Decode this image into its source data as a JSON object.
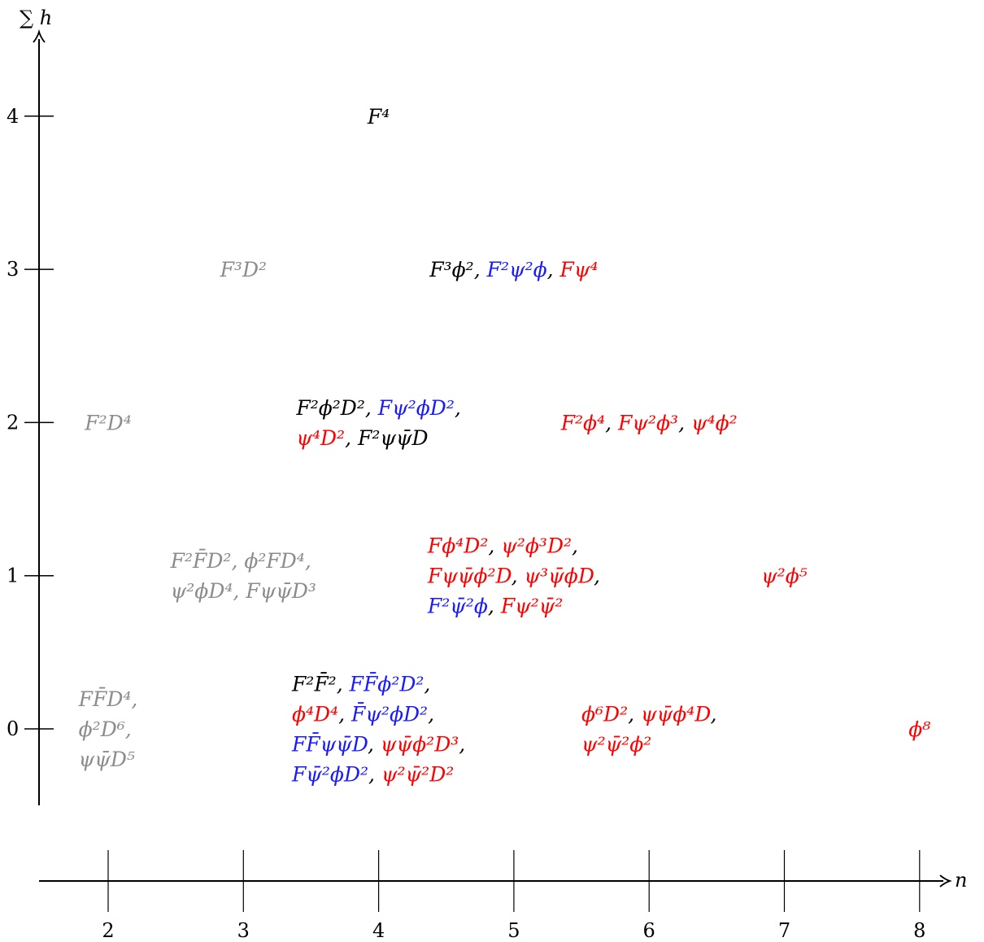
{
  "colors": {
    "black": "#000000",
    "blue": "#1a1aff",
    "red": "#ff0000",
    "gray": "#8c8c8c"
  },
  "axes": {
    "y_title": "∑ h",
    "x_title": "n",
    "y_ticks": [
      "0",
      "1",
      "2",
      "3",
      "4"
    ],
    "x_ticks": [
      "2",
      "3",
      "4",
      "5",
      "6",
      "7",
      "8"
    ]
  },
  "chart_data": {
    "type": "table",
    "x_axis": {
      "label": "n",
      "values": [
        2,
        3,
        4,
        5,
        6,
        7,
        8
      ]
    },
    "y_axis": {
      "label": "∑ h",
      "values": [
        0,
        1,
        2,
        3,
        4
      ]
    },
    "entries": [
      {
        "n": 4,
        "sum_h": 4,
        "lines": [
          [
            {
              "text": "F⁴",
              "color": "black"
            }
          ]
        ]
      },
      {
        "n": 3,
        "sum_h": 3,
        "lines": [
          [
            {
              "text": "F³D²",
              "color": "gray"
            }
          ]
        ]
      },
      {
        "n": 5,
        "sum_h": 3,
        "lines": [
          [
            {
              "text": "F³ϕ², ",
              "color": "black"
            },
            {
              "text": "F²ψ²ϕ",
              "color": "blue"
            },
            {
              "text": ", ",
              "color": "black"
            },
            {
              "text": "Fψ⁴",
              "color": "red"
            }
          ]
        ]
      },
      {
        "n": 2,
        "sum_h": 2,
        "lines": [
          [
            {
              "text": "F²D⁴",
              "color": "gray"
            }
          ]
        ]
      },
      {
        "n": 4,
        "sum_h": 2,
        "lines": [
          [
            {
              "text": "F²ϕ²D², ",
              "color": "black"
            },
            {
              "text": "Fψ²ϕD²",
              "color": "blue"
            },
            {
              "text": ",",
              "color": "black"
            }
          ],
          [
            {
              "text": "ψ⁴D²",
              "color": "red"
            },
            {
              "text": ", F²ψψ̄D",
              "color": "black"
            }
          ]
        ]
      },
      {
        "n": 6,
        "sum_h": 2,
        "lines": [
          [
            {
              "text": "F²ϕ⁴",
              "color": "red"
            },
            {
              "text": ", ",
              "color": "black"
            },
            {
              "text": "Fψ²ϕ³",
              "color": "red"
            },
            {
              "text": ", ",
              "color": "black"
            },
            {
              "text": "ψ⁴ϕ²",
              "color": "red"
            }
          ]
        ]
      },
      {
        "n": 3,
        "sum_h": 1,
        "lines": [
          [
            {
              "text": "F²F̄D², ϕ²FD⁴,",
              "color": "gray"
            }
          ],
          [
            {
              "text": "ψ²ϕD⁴, Fψψ̄D³",
              "color": "gray"
            }
          ]
        ]
      },
      {
        "n": 5,
        "sum_h": 1,
        "lines": [
          [
            {
              "text": "Fϕ⁴D²",
              "color": "red"
            },
            {
              "text": ", ",
              "color": "black"
            },
            {
              "text": "ψ²ϕ³D²",
              "color": "red"
            },
            {
              "text": ",",
              "color": "black"
            }
          ],
          [
            {
              "text": "Fψψ̄ϕ²D",
              "color": "red"
            },
            {
              "text": ", ",
              "color": "black"
            },
            {
              "text": "ψ³ψ̄ϕD",
              "color": "red"
            },
            {
              "text": ",",
              "color": "black"
            }
          ],
          [
            {
              "text": "F²ψ̄²ϕ",
              "color": "blue"
            },
            {
              "text": ", ",
              "color": "black"
            },
            {
              "text": "Fψ²ψ̄²",
              "color": "red"
            }
          ]
        ]
      },
      {
        "n": 7,
        "sum_h": 1,
        "lines": [
          [
            {
              "text": "ψ²ϕ⁵",
              "color": "red"
            }
          ]
        ]
      },
      {
        "n": 2,
        "sum_h": 0,
        "lines": [
          [
            {
              "text": "FF̄D⁴,",
              "color": "gray"
            }
          ],
          [
            {
              "text": "ϕ²D⁶,",
              "color": "gray"
            }
          ],
          [
            {
              "text": "ψψ̄D⁵",
              "color": "gray"
            }
          ]
        ]
      },
      {
        "n": 4,
        "sum_h": 0,
        "lines": [
          [
            {
              "text": "F²F̄², ",
              "color": "black"
            },
            {
              "text": "FF̄ϕ²D²",
              "color": "blue"
            },
            {
              "text": ",",
              "color": "black"
            }
          ],
          [
            {
              "text": "ϕ⁴D⁴",
              "color": "red"
            },
            {
              "text": ", ",
              "color": "black"
            },
            {
              "text": "F̄ψ²ϕD²",
              "color": "blue"
            },
            {
              "text": ",",
              "color": "black"
            }
          ],
          [
            {
              "text": "FF̄ψψ̄D",
              "color": "blue"
            },
            {
              "text": ", ",
              "color": "black"
            },
            {
              "text": "ψψ̄ϕ²D³",
              "color": "red"
            },
            {
              "text": ",",
              "color": "black"
            }
          ],
          [
            {
              "text": "Fψ̄²ϕD²",
              "color": "blue"
            },
            {
              "text": ", ",
              "color": "black"
            },
            {
              "text": "ψ²ψ̄²D²",
              "color": "red"
            }
          ]
        ]
      },
      {
        "n": 6,
        "sum_h": 0,
        "lines": [
          [
            {
              "text": "ϕ⁶D²",
              "color": "red"
            },
            {
              "text": ", ",
              "color": "black"
            },
            {
              "text": "ψψ̄ϕ⁴D",
              "color": "red"
            },
            {
              "text": ",",
              "color": "black"
            }
          ],
          [
            {
              "text": "ψ²ψ̄²ϕ²",
              "color": "red"
            }
          ]
        ]
      },
      {
        "n": 8,
        "sum_h": 0,
        "lines": [
          [
            {
              "text": "ϕ⁸",
              "color": "red"
            }
          ]
        ]
      }
    ]
  }
}
